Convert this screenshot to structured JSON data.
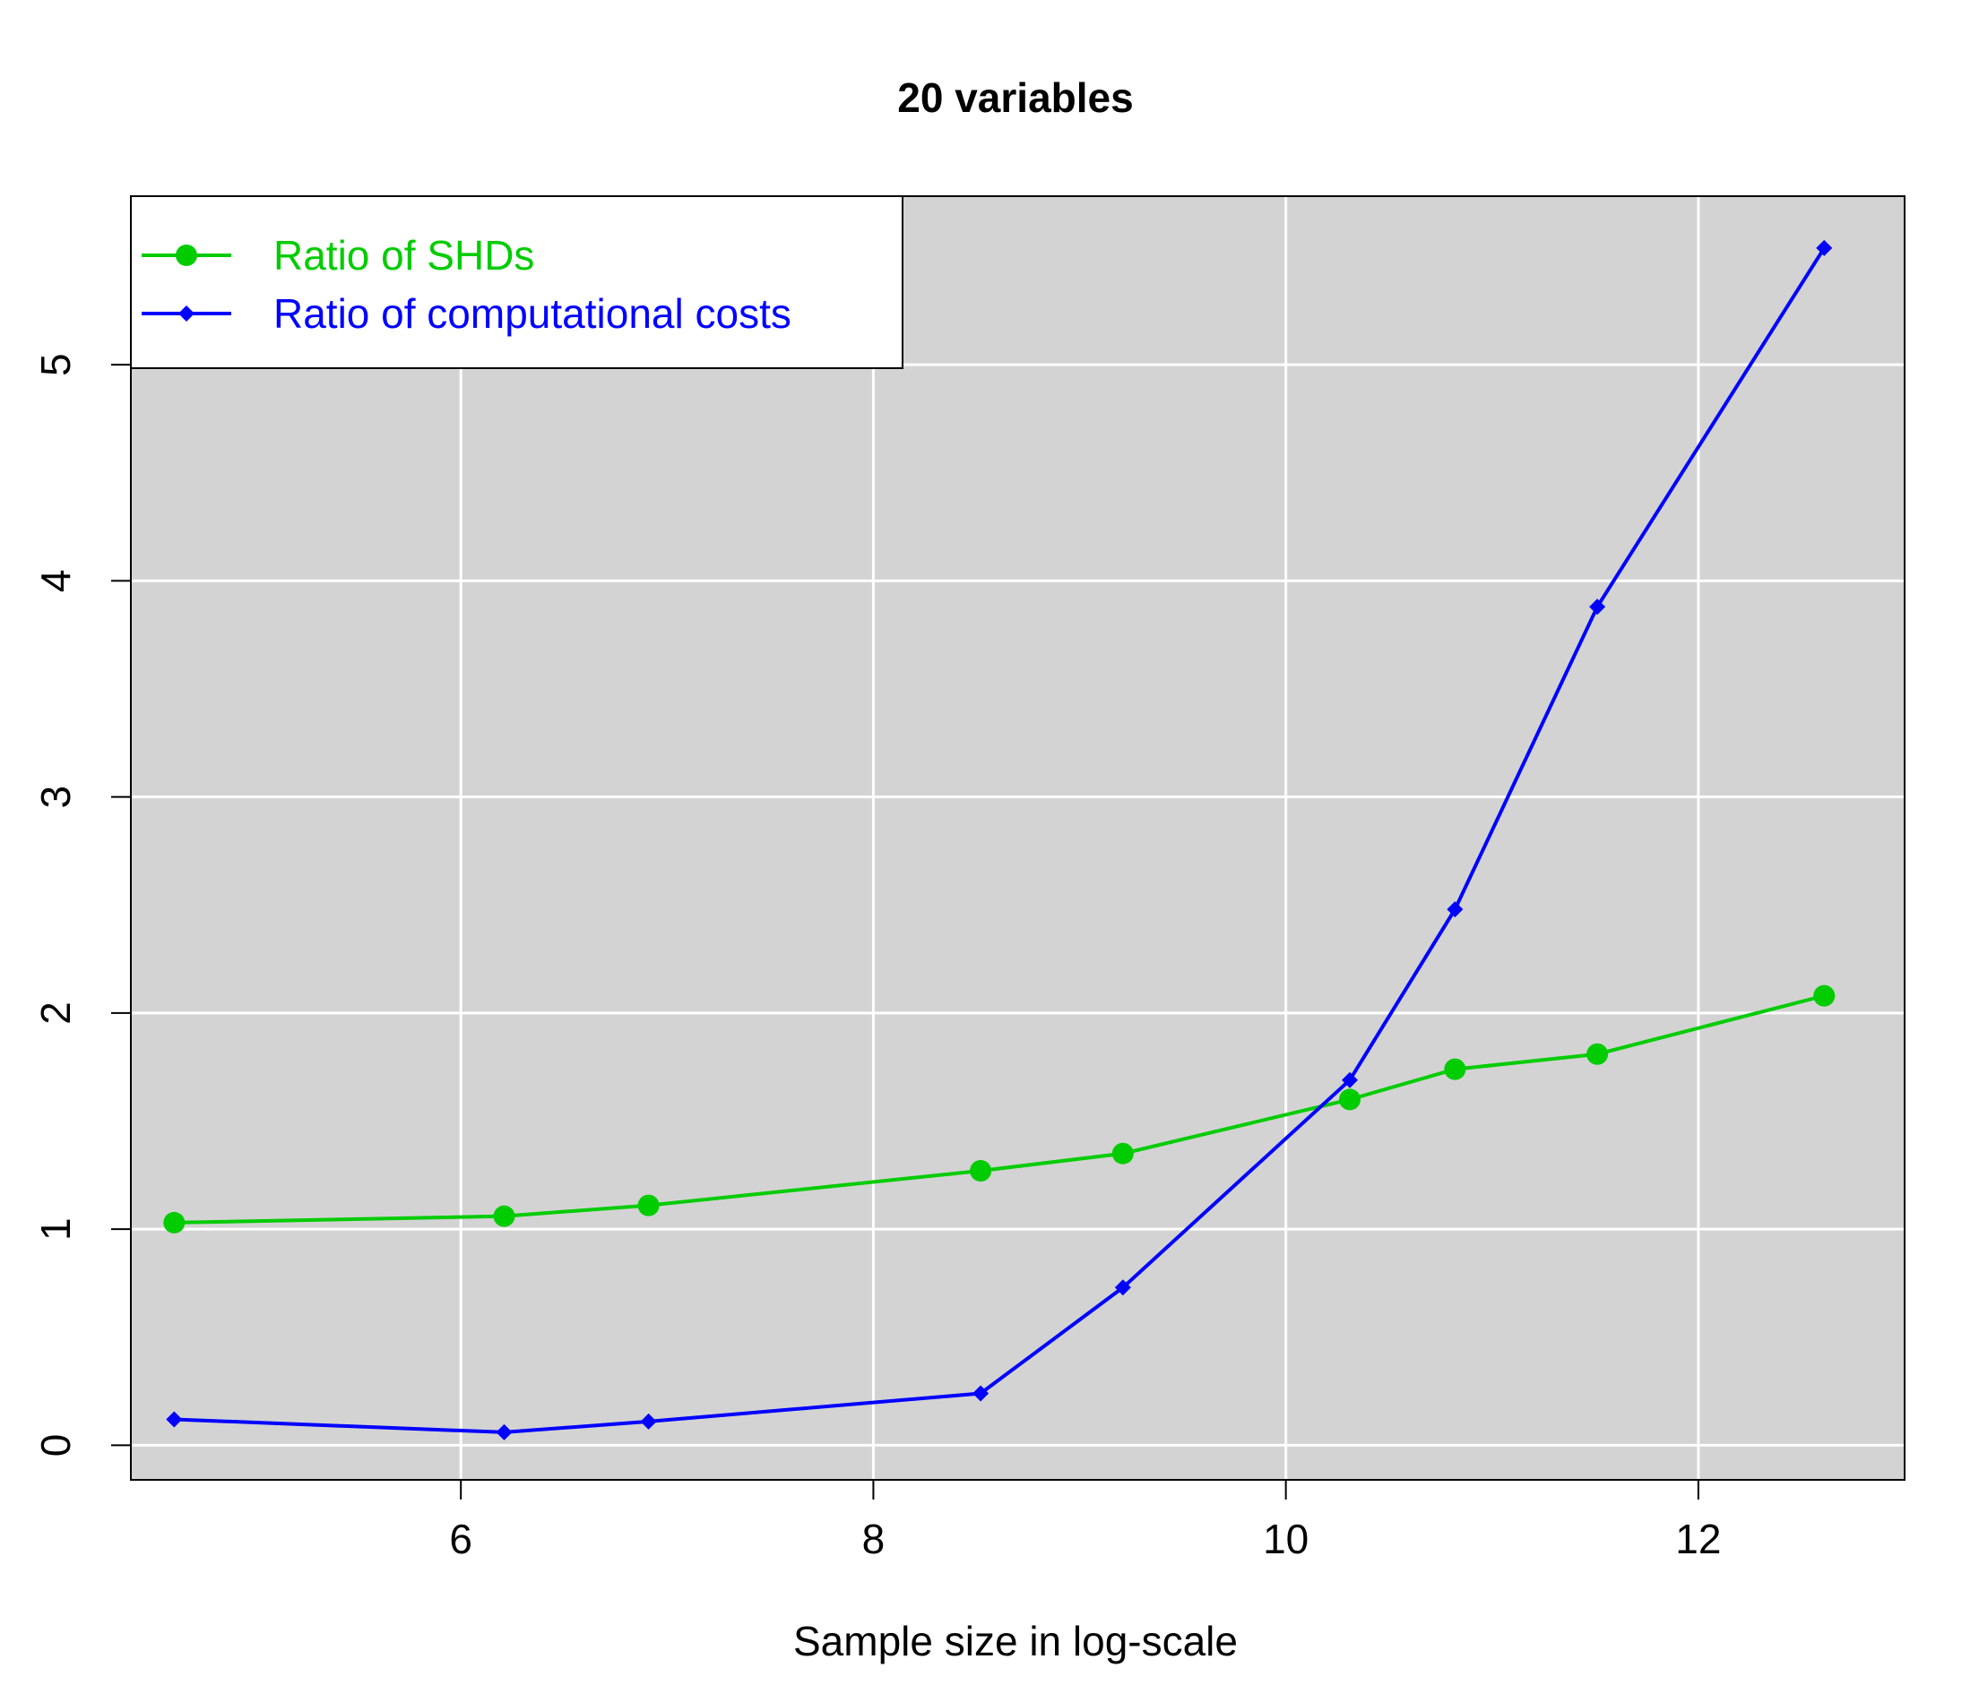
{
  "chart_data": {
    "type": "line",
    "title": "20 variables",
    "xlabel": "Sample size in log-scale",
    "ylabel": "",
    "xlim": [
      4.4,
      13.0
    ],
    "ylim": [
      -0.16,
      5.78
    ],
    "xticks": [
      6,
      8,
      10,
      12
    ],
    "yticks": [
      0,
      1,
      2,
      3,
      4,
      5
    ],
    "grid": true,
    "background": "#d3d3d3",
    "legend_position": "top-left",
    "x": [
      4.61,
      6.21,
      6.91,
      8.52,
      9.21,
      10.31,
      10.82,
      11.51,
      12.61
    ],
    "series": [
      {
        "name": "Ratio of SHDs",
        "color": "#00cc00",
        "marker": "circle",
        "values": [
          1.03,
          1.06,
          1.11,
          1.27,
          1.35,
          1.6,
          1.74,
          1.81,
          2.08
        ]
      },
      {
        "name": "Ratio of computational costs",
        "color": "#0000ff",
        "marker": "diamond",
        "values": [
          0.12,
          0.06,
          0.11,
          0.24,
          0.73,
          1.69,
          2.48,
          3.88,
          5.54
        ]
      }
    ]
  }
}
